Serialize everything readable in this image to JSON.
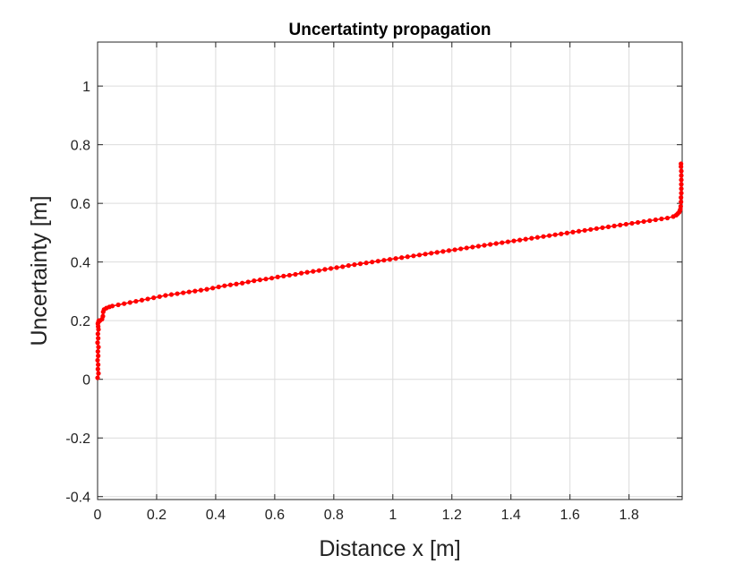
{
  "chart_data": {
    "type": "line",
    "title": "Uncertatinty propagation",
    "xlabel": "Distance x [m]",
    "ylabel": "Uncertainty [m]",
    "xlim": [
      0,
      1.98
    ],
    "ylim": [
      -0.41,
      1.15
    ],
    "grid": true,
    "x_ticks": [
      0,
      0.2,
      0.4,
      0.6,
      0.8,
      1,
      1.2,
      1.4,
      1.6,
      1.8
    ],
    "x_tick_labels": [
      "0",
      "0.2",
      "0.4",
      "0.6",
      "0.8",
      "1",
      "1.2",
      "1.4",
      "1.6",
      "1.8"
    ],
    "y_ticks": [
      -0.4,
      -0.2,
      0,
      0.2,
      0.4,
      0.6,
      0.8,
      1
    ],
    "y_tick_labels": [
      "-0.4",
      "-0.2",
      "0",
      "0.2",
      "0.4",
      "0.6",
      "0.8",
      "1"
    ],
    "series": [
      {
        "color": "#ff0000",
        "marker": "dot",
        "x": [
          0,
          0.003,
          0.001,
          0.002,
          0,
          0.002,
          0.001,
          0.003,
          0,
          0.002,
          0.001,
          0.003,
          0.002,
          0.001,
          0.003,
          0.004,
          0.005,
          0.008,
          0.015,
          0.018,
          0.019,
          0.022,
          0.03,
          0.04,
          0.05,
          0.07,
          0.09,
          0.11,
          0.13,
          0.15,
          0.17,
          0.19,
          0.21,
          0.23,
          0.25,
          0.27,
          0.29,
          0.31,
          0.33,
          0.35,
          0.37,
          0.39,
          0.41,
          0.43,
          0.45,
          0.47,
          0.49,
          0.51,
          0.53,
          0.55,
          0.57,
          0.59,
          0.61,
          0.63,
          0.65,
          0.67,
          0.69,
          0.71,
          0.73,
          0.75,
          0.77,
          0.79,
          0.81,
          0.83,
          0.85,
          0.87,
          0.89,
          0.91,
          0.93,
          0.95,
          0.97,
          0.99,
          1.01,
          1.03,
          1.05,
          1.07,
          1.09,
          1.11,
          1.13,
          1.15,
          1.17,
          1.19,
          1.21,
          1.23,
          1.25,
          1.27,
          1.29,
          1.31,
          1.33,
          1.35,
          1.37,
          1.39,
          1.41,
          1.43,
          1.45,
          1.47,
          1.49,
          1.51,
          1.53,
          1.55,
          1.57,
          1.59,
          1.61,
          1.63,
          1.65,
          1.67,
          1.69,
          1.71,
          1.73,
          1.75,
          1.77,
          1.79,
          1.81,
          1.83,
          1.85,
          1.87,
          1.89,
          1.91,
          1.93,
          1.95,
          1.96,
          1.965,
          1.97,
          1.972,
          1.974,
          1.975,
          1.976,
          1.976,
          1.977,
          1.977,
          1.977,
          1.977,
          1.977,
          1.977,
          1.976,
          1.976
        ],
        "y": [
          0.005,
          0.02,
          0.035,
          0.05,
          0.065,
          0.08,
          0.095,
          0.11,
          0.125,
          0.14,
          0.155,
          0.17,
          0.18,
          0.19,
          0.195,
          0.2,
          0.2,
          0.2,
          0.205,
          0.215,
          0.23,
          0.238,
          0.243,
          0.247,
          0.25,
          0.254,
          0.258,
          0.262,
          0.266,
          0.27,
          0.274,
          0.278,
          0.282,
          0.286,
          0.289,
          0.292,
          0.295,
          0.298,
          0.301,
          0.304,
          0.307,
          0.311,
          0.315,
          0.319,
          0.322,
          0.325,
          0.328,
          0.332,
          0.336,
          0.339,
          0.342,
          0.345,
          0.349,
          0.352,
          0.355,
          0.358,
          0.362,
          0.365,
          0.368,
          0.371,
          0.375,
          0.378,
          0.381,
          0.384,
          0.388,
          0.391,
          0.394,
          0.397,
          0.4,
          0.403,
          0.406,
          0.409,
          0.412,
          0.415,
          0.418,
          0.421,
          0.424,
          0.427,
          0.43,
          0.433,
          0.436,
          0.439,
          0.442,
          0.445,
          0.448,
          0.451,
          0.454,
          0.457,
          0.46,
          0.463,
          0.466,
          0.469,
          0.472,
          0.475,
          0.478,
          0.481,
          0.484,
          0.487,
          0.49,
          0.493,
          0.496,
          0.499,
          0.502,
          0.505,
          0.508,
          0.511,
          0.514,
          0.517,
          0.52,
          0.523,
          0.526,
          0.529,
          0.532,
          0.535,
          0.538,
          0.541,
          0.544,
          0.547,
          0.55,
          0.555,
          0.56,
          0.565,
          0.57,
          0.575,
          0.58,
          0.59,
          0.605,
          0.62,
          0.635,
          0.65,
          0.665,
          0.68,
          0.695,
          0.71,
          0.725,
          0.735
        ]
      }
    ]
  }
}
